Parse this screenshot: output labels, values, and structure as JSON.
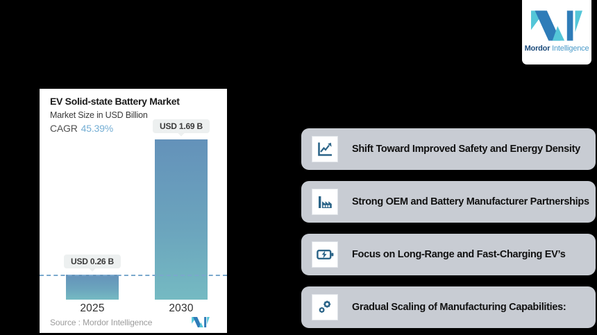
{
  "brand": {
    "logo_icon": "mordor-logo-icon",
    "name_bold": "Mordor",
    "name_light": "Intelligence"
  },
  "chart_panel": {
    "cagr_label": "CAGR"
  },
  "chart_data": {
    "type": "bar",
    "title": "EV Solid-state Battery Market",
    "subtitle": "Market Size in USD Billion",
    "cagr": "45.39%",
    "categories": [
      "2025",
      "2030"
    ],
    "values": [
      0.26,
      1.69
    ],
    "value_labels": [
      "USD 0.26 B",
      "USD 1.69 B"
    ],
    "unit": "USD Billion",
    "ylim": [
      0,
      1.8
    ],
    "grid": false,
    "dashed_reference_line_at": 0.26,
    "source": "Source :  Mordor Intelligence",
    "bar_color_top": "#6492ba",
    "bar_color_bottom": "#75bac2"
  },
  "trends": {
    "items": [
      {
        "icon": "line-chart-icon",
        "label": "Shift Toward Improved Safety and Energy Density"
      },
      {
        "icon": "factory-icon",
        "label": "Strong OEM and Battery Manufacturer Partnerships"
      },
      {
        "icon": "battery-charging-icon",
        "label": "Focus on Long-Range and Fast-Charging EV’s"
      },
      {
        "icon": "gears-icon",
        "label": "Gradual Scaling of Manufacturing Capabilities:"
      }
    ]
  },
  "colors": {
    "background": "#000000",
    "panel": "#ffffff",
    "card": "#c8ccd3",
    "trend_icon": "#2b6488",
    "cagr_value": "#74aed4",
    "dashed_line": "#7aa8cd",
    "pill_background": "#edf0f0",
    "logo_blue": "#2e7cb8",
    "logo_teal": "#54c6d8"
  }
}
